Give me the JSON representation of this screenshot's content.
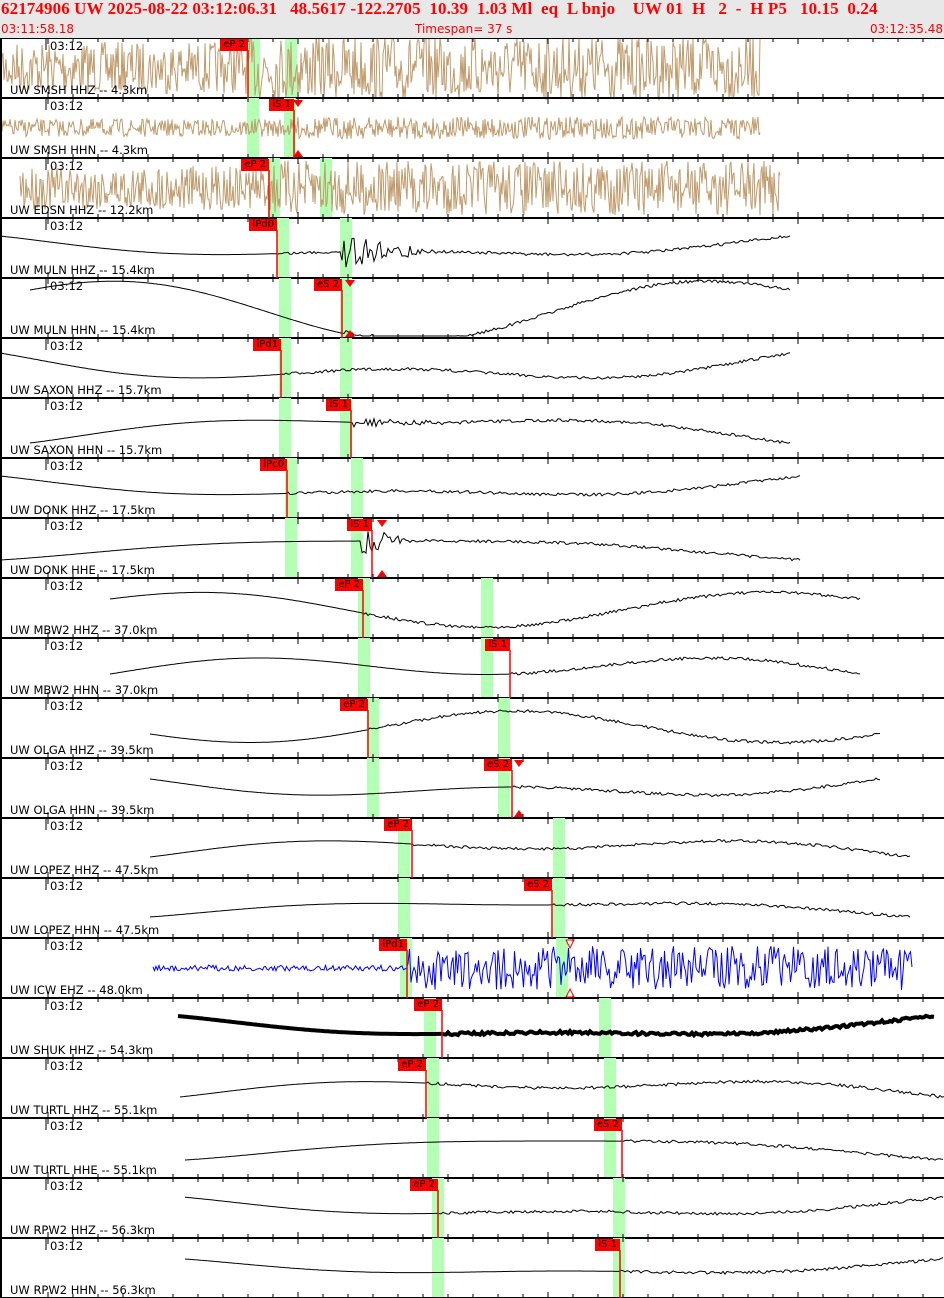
{
  "header": {
    "title": "62174906 UW 2025-08-22 03:12:06.31   48.5617 -122.2705  10.39  1.03 Ml  eq  L bnjo    UW 01  H   2  -  H P5   10.15  0.24",
    "start_time": "03:11:58.18",
    "timespan": "Timespan=  37 s",
    "end_time": "03:12:35.48"
  },
  "time_tick_label": "03:12",
  "colors": {
    "pick": "#ff0000",
    "window": "#b3ffb3",
    "broadband_short": "#c19a6b",
    "trace": "#000000",
    "short_period": "#0000ff"
  },
  "traces": [
    {
      "label": "UW SMSH HHZ -- 4.3km",
      "picks": [
        "eP 2"
      ]
    },
    {
      "label": "UW SMSH HHN -- 4.3km",
      "picks": [
        "iS 1"
      ]
    },
    {
      "label": "UW EDSN HHZ -- 12.2km",
      "picks": [
        "eP 2"
      ]
    },
    {
      "label": "UW MULN HHZ -- 15.4km",
      "picks": [
        "iPd0"
      ]
    },
    {
      "label": "UW MULN HHN -- 15.4km",
      "picks": [
        "eS 2"
      ]
    },
    {
      "label": "UW SAXON HHZ -- 15.7km",
      "picks": [
        "iPd1"
      ]
    },
    {
      "label": "UW SAXON HHN -- 15.7km",
      "picks": [
        "iS 1"
      ]
    },
    {
      "label": "UW DONK HHZ -- 17.5km",
      "picks": [
        "iPc0"
      ]
    },
    {
      "label": "UW DONK HHE -- 17.5km",
      "picks": [
        "iS 1"
      ]
    },
    {
      "label": "UW MBW2 HHZ -- 37.0km",
      "picks": [
        "eP 2"
      ]
    },
    {
      "label": "UW MBW2 HHN -- 37.0km",
      "picks": [
        "iS 1"
      ]
    },
    {
      "label": "UW OLGA HHZ -- 39.5km",
      "picks": [
        "eP 2"
      ]
    },
    {
      "label": "UW OLGA HHN -- 39.5km",
      "picks": [
        "eS 2"
      ]
    },
    {
      "label": "UW LOPEZ HHZ -- 47.5km",
      "picks": [
        "eP 2"
      ]
    },
    {
      "label": "UW LOPEZ HHN -- 47.5km",
      "picks": [
        "eS 2"
      ]
    },
    {
      "label": "UW ICW EHZ -- 48.0km",
      "picks": [
        "iPd1"
      ]
    },
    {
      "label": "UW SHUK HHZ -- 54.3km",
      "picks": [
        "eP 2"
      ]
    },
    {
      "label": "UW TURTL HHZ -- 55.1km",
      "picks": [
        "eP 2"
      ]
    },
    {
      "label": "UW TURTL HHE -- 55.1km",
      "picks": [
        "eS 2"
      ]
    },
    {
      "label": "UW RPW2 HHZ -- 56.3km",
      "picks": [
        "eP 2"
      ]
    },
    {
      "label": "UW RPW2 HHN -- 56.3km",
      "picks": [
        "iS 1"
      ]
    }
  ]
}
